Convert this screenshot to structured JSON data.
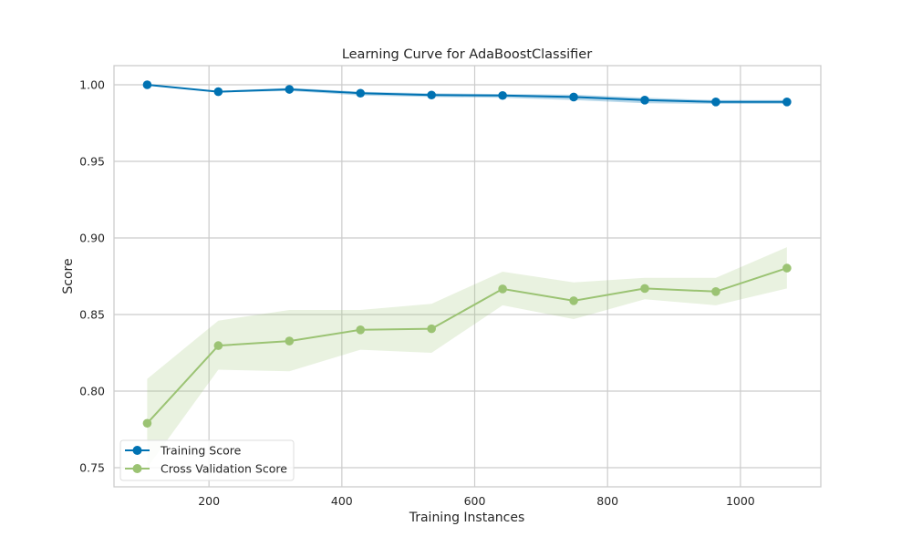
{
  "chart_data": {
    "type": "line",
    "title": "Learning Curve for AdaBoostClassifier",
    "xlabel": "Training Instances",
    "ylabel": "Score",
    "xlim": [
      57,
      1121
    ],
    "ylim": [
      0.7375,
      1.0125
    ],
    "xticks": [
      200,
      400,
      600,
      800,
      1000
    ],
    "yticks": [
      0.75,
      0.8,
      0.85,
      0.9,
      0.95,
      1.0
    ],
    "ytick_labels": [
      "0.75",
      "0.80",
      "0.85",
      "0.90",
      "0.95",
      "1.00"
    ],
    "grid": true,
    "legend_position": "lower-left",
    "x": [
      107,
      214,
      321,
      428,
      535,
      642,
      749,
      856,
      963,
      1070
    ],
    "series": [
      {
        "name": "Training Score",
        "color": "#0072b2",
        "values": [
          1.0,
          0.9955,
          0.997,
          0.9945,
          0.9933,
          0.993,
          0.992,
          0.99,
          0.9888,
          0.9888
        ],
        "band_lower": [
          1.0,
          0.995,
          0.996,
          0.993,
          0.992,
          0.9915,
          0.99,
          0.988,
          0.9875,
          0.9875
        ],
        "band_upper": [
          1.0,
          0.996,
          0.998,
          0.9955,
          0.9945,
          0.994,
          0.9935,
          0.9915,
          0.99,
          0.99
        ]
      },
      {
        "name": "Cross Validation Score",
        "color": "#9bc373",
        "values": [
          0.779,
          0.8297,
          0.8327,
          0.84,
          0.8407,
          0.8667,
          0.859,
          0.867,
          0.865,
          0.8803
        ],
        "band_lower": [
          0.75,
          0.814,
          0.813,
          0.827,
          0.825,
          0.856,
          0.847,
          0.86,
          0.856,
          0.867
        ],
        "band_upper": [
          0.808,
          0.846,
          0.853,
          0.853,
          0.857,
          0.878,
          0.871,
          0.874,
          0.874,
          0.894
        ]
      }
    ]
  }
}
